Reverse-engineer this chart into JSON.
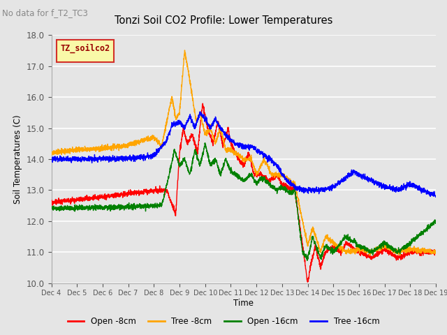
{
  "title": "Tonzi Soil CO2 Profile: Lower Temperatures",
  "subtitle": "No data for f_T2_TC3",
  "xlabel": "Time",
  "ylabel": "Soil Temperatures (C)",
  "ylim": [
    10.0,
    18.0
  ],
  "yticks": [
    10.0,
    11.0,
    12.0,
    13.0,
    14.0,
    15.0,
    16.0,
    17.0,
    18.0
  ],
  "xtick_labels": [
    "Dec 4",
    "Dec 5",
    "Dec 6",
    "Dec 7",
    "Dec 8",
    "Dec 9",
    "Dec 10",
    "Dec 11",
    "Dec 12",
    "Dec 13",
    "Dec 14",
    "Dec 15",
    "Dec 16",
    "Dec 17",
    "Dec 18",
    "Dec 19"
  ],
  "legend_label": "TZ_soilco2",
  "legend_entries": [
    "Open -8cm",
    "Tree -8cm",
    "Open -16cm",
    "Tree -16cm"
  ],
  "line_colors": [
    "red",
    "orange",
    "green",
    "blue"
  ],
  "background_color": "#e5e5e5",
  "grid_color": "white"
}
